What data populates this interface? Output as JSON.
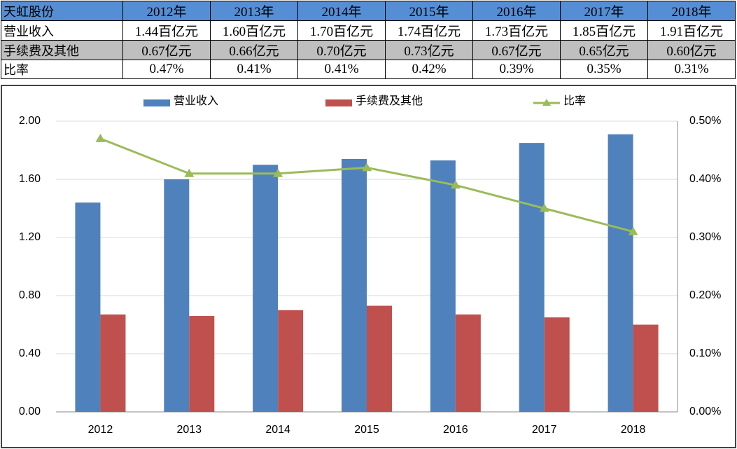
{
  "table": {
    "header": [
      "天虹股份",
      "2012年",
      "2013年",
      "2014年",
      "2015年",
      "2016年",
      "2017年",
      "2018年"
    ],
    "rows": [
      [
        "营业收入",
        "1.44百亿元",
        "1.60百亿元",
        "1.70百亿元",
        "1.74百亿元",
        "1.73百亿元",
        "1.85百亿元",
        "1.91百亿元"
      ],
      [
        "手续费及其他",
        "0.67亿元",
        "0.66亿元",
        "0.70亿元",
        "0.73亿元",
        "0.67亿元",
        "0.65亿元",
        "0.60亿元"
      ],
      [
        "比率",
        "0.47%",
        "0.41%",
        "0.41%",
        "0.42%",
        "0.39%",
        "0.35%",
        "0.31%"
      ]
    ]
  },
  "chart_data": {
    "type": "bar",
    "categories": [
      "2012",
      "2013",
      "2014",
      "2015",
      "2016",
      "2017",
      "2018"
    ],
    "series": [
      {
        "name": "营业收入",
        "color": "#4f81bd",
        "values": [
          1.44,
          1.6,
          1.7,
          1.74,
          1.73,
          1.85,
          1.91
        ]
      },
      {
        "name": "手续费及其他",
        "color": "#c0504d",
        "values": [
          0.67,
          0.66,
          0.7,
          0.73,
          0.67,
          0.65,
          0.6
        ]
      },
      {
        "name": "比率",
        "type": "line",
        "axis": "y2",
        "color": "#9bbb59",
        "values": [
          0.47,
          0.41,
          0.41,
          0.42,
          0.39,
          0.35,
          0.31
        ]
      }
    ],
    "ylim": [
      0,
      2
    ],
    "yticks": [
      {
        "value": 0,
        "label": "0.00"
      },
      {
        "value": 0.4,
        "label": "0.40"
      },
      {
        "value": 0.8,
        "label": "0.80"
      },
      {
        "value": 1.2,
        "label": "1.20"
      },
      {
        "value": 1.6,
        "label": "1.60"
      },
      {
        "value": 2,
        "label": "2.00"
      }
    ],
    "y2lim": [
      0,
      0.5
    ],
    "y2ticks": [
      {
        "value": 0,
        "label": "0.00%"
      },
      {
        "value": 0.1,
        "label": "0.10%"
      },
      {
        "value": 0.2,
        "label": "0.20%"
      },
      {
        "value": 0.3,
        "label": "0.30%"
      },
      {
        "value": 0.4,
        "label": "0.40%"
      },
      {
        "value": 0.5,
        "label": "0.50%"
      }
    ],
    "grid": true,
    "legend": "top"
  }
}
